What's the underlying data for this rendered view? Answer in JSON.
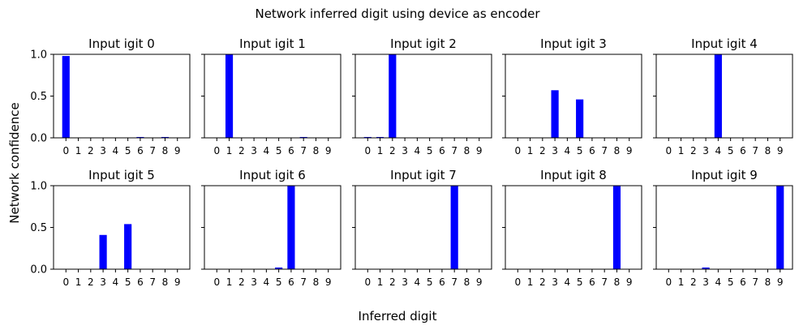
{
  "figure": {
    "title": "Network inferred digit using device as encoder",
    "xlabel": "Inferred digit",
    "ylabel": "Network confidence"
  },
  "colors": {
    "bar": "#0000ff",
    "axis": "#000000",
    "background": "#ffffff"
  },
  "chart_data": [
    {
      "type": "bar",
      "title": "Input igit 0",
      "categories": [
        "0",
        "1",
        "2",
        "3",
        "4",
        "5",
        "6",
        "7",
        "8",
        "9"
      ],
      "values": [
        0.98,
        0,
        0,
        0,
        0,
        0,
        0.01,
        0,
        0.01,
        0
      ],
      "ylim": [
        0,
        1
      ],
      "yticks": [
        "0.0",
        "0.5",
        "1.0"
      ]
    },
    {
      "type": "bar",
      "title": "Input igit 1",
      "categories": [
        "0",
        "1",
        "2",
        "3",
        "4",
        "5",
        "6",
        "7",
        "8",
        "9"
      ],
      "values": [
        0,
        1.0,
        0,
        0,
        0,
        0,
        0,
        0.01,
        0,
        0
      ],
      "ylim": [
        0,
        1
      ],
      "yticks": [
        "0.0",
        "0.5",
        "1.0"
      ]
    },
    {
      "type": "bar",
      "title": "Input igit 2",
      "categories": [
        "0",
        "1",
        "2",
        "3",
        "4",
        "5",
        "6",
        "7",
        "8",
        "9"
      ],
      "values": [
        0.01,
        0.01,
        1.0,
        0,
        0,
        0,
        0,
        0,
        0,
        0
      ],
      "ylim": [
        0,
        1
      ],
      "yticks": [
        "0.0",
        "0.5",
        "1.0"
      ]
    },
    {
      "type": "bar",
      "title": "Input igit 3",
      "categories": [
        "0",
        "1",
        "2",
        "3",
        "4",
        "5",
        "6",
        "7",
        "8",
        "9"
      ],
      "values": [
        0,
        0,
        0,
        0.57,
        0,
        0.46,
        0,
        0,
        0,
        0
      ],
      "ylim": [
        0,
        1
      ],
      "yticks": [
        "0.0",
        "0.5",
        "1.0"
      ]
    },
    {
      "type": "bar",
      "title": "Input igit 4",
      "categories": [
        "0",
        "1",
        "2",
        "3",
        "4",
        "5",
        "6",
        "7",
        "8",
        "9"
      ],
      "values": [
        0,
        0,
        0,
        0,
        1.0,
        0,
        0,
        0,
        0,
        0
      ],
      "ylim": [
        0,
        1
      ],
      "yticks": [
        "0.0",
        "0.5",
        "1.0"
      ]
    },
    {
      "type": "bar",
      "title": "Input igit 5",
      "categories": [
        "0",
        "1",
        "2",
        "3",
        "4",
        "5",
        "6",
        "7",
        "8",
        "9"
      ],
      "values": [
        0,
        0,
        0,
        0.41,
        0,
        0.54,
        0,
        0,
        0,
        0
      ],
      "ylim": [
        0,
        1
      ],
      "yticks": [
        "0.0",
        "0.5",
        "1.0"
      ]
    },
    {
      "type": "bar",
      "title": "Input igit 6",
      "categories": [
        "0",
        "1",
        "2",
        "3",
        "4",
        "5",
        "6",
        "7",
        "8",
        "9"
      ],
      "values": [
        0,
        0,
        0,
        0,
        0,
        0.02,
        1.0,
        0,
        0,
        0
      ],
      "ylim": [
        0,
        1
      ],
      "yticks": [
        "0.0",
        "0.5",
        "1.0"
      ]
    },
    {
      "type": "bar",
      "title": "Input igit 7",
      "categories": [
        "0",
        "1",
        "2",
        "3",
        "4",
        "5",
        "6",
        "7",
        "8",
        "9"
      ],
      "values": [
        0,
        0,
        0,
        0,
        0,
        0,
        0,
        1.0,
        0,
        0
      ],
      "ylim": [
        0,
        1
      ],
      "yticks": [
        "0.0",
        "0.5",
        "1.0"
      ]
    },
    {
      "type": "bar",
      "title": "Input igit 8",
      "categories": [
        "0",
        "1",
        "2",
        "3",
        "4",
        "5",
        "6",
        "7",
        "8",
        "9"
      ],
      "values": [
        0,
        0,
        0,
        0,
        0,
        0,
        0,
        0,
        1.0,
        0
      ],
      "ylim": [
        0,
        1
      ],
      "yticks": [
        "0.0",
        "0.5",
        "1.0"
      ]
    },
    {
      "type": "bar",
      "title": "Input igit 9",
      "categories": [
        "0",
        "1",
        "2",
        "3",
        "4",
        "5",
        "6",
        "7",
        "8",
        "9"
      ],
      "values": [
        0,
        0,
        0,
        0.02,
        0,
        0,
        0,
        0,
        0,
        1.0
      ],
      "ylim": [
        0,
        1
      ],
      "yticks": [
        "0.0",
        "0.5",
        "1.0"
      ]
    }
  ]
}
